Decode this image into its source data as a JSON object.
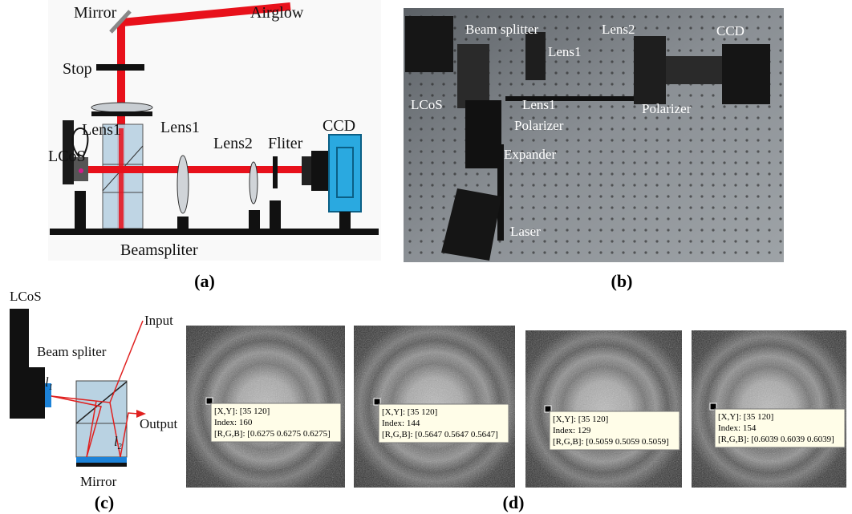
{
  "panel_a": {
    "caption": "(a)",
    "labels": [
      "Mirror",
      "Airglow",
      "Stop",
      "Lens1",
      "LCoS",
      "Lens1",
      "Lens2",
      "Fliter",
      "CCD",
      "Beamspliter"
    ]
  },
  "panel_b": {
    "caption": "(b)",
    "labels": [
      "Beam splitter",
      "Lens2",
      "CCD",
      "Lens1",
      "LCoS",
      "Lens1",
      "Polarizer",
      "Polarizer",
      "Expander",
      "Laser"
    ]
  },
  "panel_c": {
    "caption": "(c)",
    "labels": [
      "LCoS",
      "Input",
      "Beam spliter",
      "Output",
      "Mirror"
    ],
    "l1": {
      "text": "l",
      "sub": "1"
    },
    "l2": {
      "text": "l",
      "sub": "2"
    }
  },
  "panel_d": {
    "caption": "(d)",
    "images": [
      {
        "xy": "[X,Y]: [35 120]",
        "index": "Index: 160",
        "rgb": "[R,G,B]: [0.6275 0.6275 0.6275]"
      },
      {
        "xy": "[X,Y]: [35 120]",
        "index": "Index: 144",
        "rgb": "[R,G,B]: [0.5647 0.5647 0.5647]"
      },
      {
        "xy": "[X,Y]: [35 120]",
        "index": "Index: 129",
        "rgb": "[R,G,B]: [0.5059 0.5059 0.5059]"
      },
      {
        "xy": "[X,Y]: [35 120]",
        "index": "Index: 154",
        "rgb": "[R,G,B]: [0.6039 0.6039 0.6039]"
      }
    ]
  }
}
